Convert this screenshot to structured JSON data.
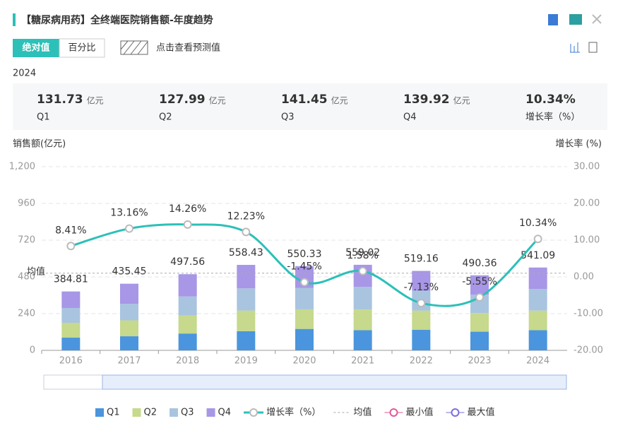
{
  "header": {
    "title": "【糖尿病用药】全终端医院销售额-年度趋势",
    "toggle": [
      "绝对值",
      "百分比"
    ],
    "forecast": "点击查看预测值",
    "year": "2024"
  },
  "summary": [
    {
      "value": 131.73,
      "unit": "亿元",
      "label": "Q1"
    },
    {
      "value": 127.99,
      "unit": "亿元",
      "label": "Q2"
    },
    {
      "value": 141.45,
      "unit": "亿元",
      "label": "Q3"
    },
    {
      "value": 139.92,
      "unit": "亿元",
      "label": "Q4"
    },
    {
      "value": "10.34%",
      "label": "增长率（%）"
    }
  ],
  "chart_data": {
    "type": "bar",
    "ylabel": "销售额(亿元)",
    "y2label": "增长率 (%)",
    "categories": [
      "2016",
      "2017",
      "2018",
      "2019",
      "2020",
      "2021",
      "2022",
      "2023",
      "2024"
    ],
    "series": [
      {
        "name": "Q1",
        "color": "#4a95dd",
        "values": [
          83,
          92,
          110,
          125,
          140,
          132,
          135,
          122,
          131.73
        ]
      },
      {
        "name": "Q2",
        "color": "#c6d98c",
        "values": [
          97,
          104,
          118,
          135,
          128,
          135,
          125,
          122,
          127.99
        ]
      },
      {
        "name": "Q3",
        "color": "#a9c4df",
        "values": [
          97,
          108,
          124,
          145,
          140,
          148,
          130,
          120,
          141.45
        ]
      },
      {
        "name": "Q4",
        "color": "#a896e6",
        "values": [
          107.81,
          131.45,
          145.56,
          153.43,
          142.33,
          144.02,
          129.16,
          126.36,
          139.92
        ]
      },
      {
        "name": "增长率（%）",
        "type": "line",
        "axis": "y2",
        "color": "#2cc0b8",
        "values": [
          8.41,
          13.16,
          14.26,
          12.23,
          -1.45,
          1.58,
          -7.13,
          -5.55,
          10.34
        ],
        "value_labels": [
          "8.41%",
          "13.16%",
          "14.26%",
          "12.23%",
          "-1.45%",
          "1.58%",
          "-7.13%",
          "-5.55%",
          "10.34%"
        ]
      }
    ],
    "totals": [
      384.81,
      435.45,
      497.56,
      558.43,
      550.33,
      559.02,
      519.16,
      490.36,
      541.09
    ],
    "mean_line": {
      "label": "均值",
      "value": 504
    },
    "markers": {
      "min": "最小值",
      "max": "最大值"
    },
    "ylim": [
      0,
      1200
    ],
    "yticks": [
      0,
      240,
      480,
      720,
      960,
      {
        "value": 1200,
        "label": "1,200"
      }
    ],
    "y2lim": [
      -20,
      30
    ],
    "y2ticks": [
      {
        "value": -20,
        "label": "-20.00"
      },
      {
        "value": -10,
        "label": "-10.00"
      },
      {
        "value": 0,
        "label": "0.00"
      },
      {
        "value": 10,
        "label": "10.00"
      },
      {
        "value": 20,
        "label": "20.00"
      },
      {
        "value": 30,
        "label": "30.00"
      }
    ],
    "grid": true
  }
}
